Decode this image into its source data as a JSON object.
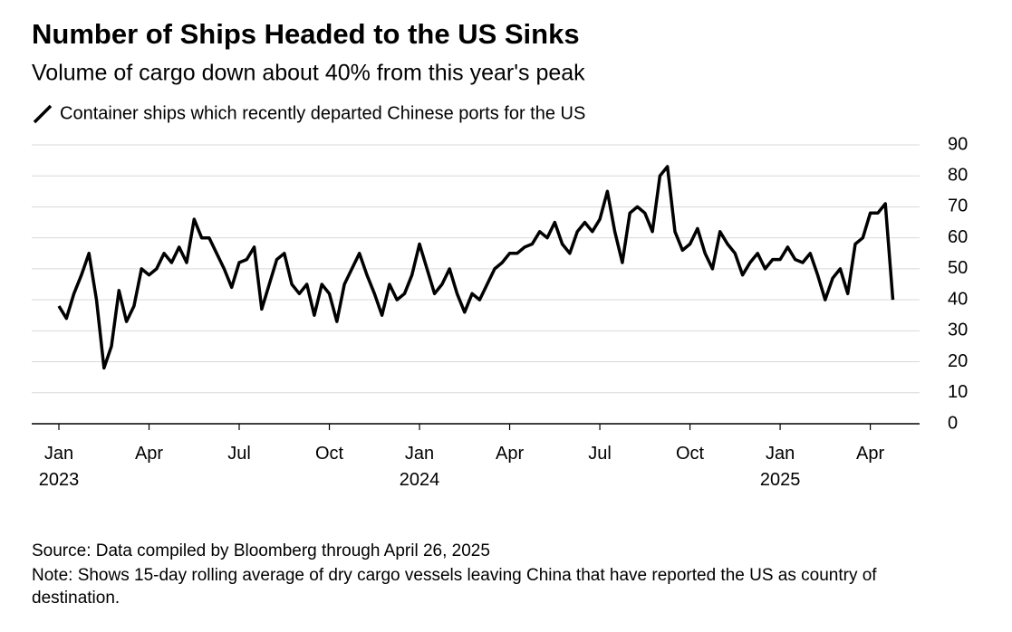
{
  "chart_data": {
    "type": "line",
    "title": "Number of Ships Headed to the US Sinks",
    "subtitle": "Volume of cargo down about 40% from this year's peak",
    "source": "Source: Data compiled by Bloomberg through April 26, 2025",
    "note": "Note: Shows 15-day rolling average of dry cargo vessels leaving China that have reported the US as country of destination.",
    "x": [
      "2023-01",
      "2023-01",
      "2023-01",
      "2023-01",
      "2023-02",
      "2023-02",
      "2023-02",
      "2023-02",
      "2023-03",
      "2023-03",
      "2023-03",
      "2023-03",
      "2023-04",
      "2023-04",
      "2023-04",
      "2023-04",
      "2023-05",
      "2023-05",
      "2023-05",
      "2023-05",
      "2023-06",
      "2023-06",
      "2023-06",
      "2023-06",
      "2023-07",
      "2023-07",
      "2023-07",
      "2023-07",
      "2023-08",
      "2023-08",
      "2023-08",
      "2023-08",
      "2023-09",
      "2023-09",
      "2023-09",
      "2023-09",
      "2023-10",
      "2023-10",
      "2023-10",
      "2023-10",
      "2023-11",
      "2023-11",
      "2023-11",
      "2023-11",
      "2023-12",
      "2023-12",
      "2023-12",
      "2023-12",
      "2024-01",
      "2024-01",
      "2024-01",
      "2024-01",
      "2024-02",
      "2024-02",
      "2024-02",
      "2024-02",
      "2024-03",
      "2024-03",
      "2024-03",
      "2024-03",
      "2024-04",
      "2024-04",
      "2024-04",
      "2024-04",
      "2024-05",
      "2024-05",
      "2024-05",
      "2024-05",
      "2024-06",
      "2024-06",
      "2024-06",
      "2024-06",
      "2024-07",
      "2024-07",
      "2024-07",
      "2024-07",
      "2024-08",
      "2024-08",
      "2024-08",
      "2024-08",
      "2024-09",
      "2024-09",
      "2024-09",
      "2024-09",
      "2024-10",
      "2024-10",
      "2024-10",
      "2024-10",
      "2024-11",
      "2024-11",
      "2024-11",
      "2024-11",
      "2024-12",
      "2024-12",
      "2024-12",
      "2024-12",
      "2025-01",
      "2025-01",
      "2025-01",
      "2025-01",
      "2025-02",
      "2025-02",
      "2025-02",
      "2025-02",
      "2025-03",
      "2025-03",
      "2025-03",
      "2025-03",
      "2025-04",
      "2025-04",
      "2025-04",
      "2025-04"
    ],
    "series": [
      {
        "name": "Container ships which recently departed Chinese ports for the US",
        "color": "#000000",
        "values": [
          38,
          34,
          42,
          48,
          55,
          40,
          18,
          25,
          43,
          33,
          38,
          50,
          48,
          50,
          55,
          52,
          57,
          52,
          66,
          60,
          60,
          55,
          50,
          44,
          52,
          53,
          57,
          37,
          45,
          53,
          55,
          45,
          42,
          45,
          35,
          45,
          42,
          33,
          45,
          50,
          55,
          48,
          42,
          35,
          45,
          40,
          42,
          48,
          58,
          50,
          42,
          45,
          50,
          42,
          36,
          42,
          40,
          45,
          50,
          52,
          55,
          55,
          57,
          58,
          62,
          60,
          65,
          58,
          55,
          62,
          65,
          62,
          66,
          75,
          62,
          52,
          68,
          70,
          68,
          62,
          80,
          83,
          62,
          56,
          58,
          63,
          55,
          50,
          62,
          58,
          55,
          48,
          52,
          55,
          50,
          53,
          53,
          57,
          53,
          52,
          55,
          48,
          40,
          47,
          50,
          42,
          58,
          60,
          68,
          68,
          71,
          40
        ]
      }
    ],
    "xticks": [
      {
        "value": "2023-01",
        "label": "Jan 2023"
      },
      {
        "value": "2023-04",
        "label": "Apr"
      },
      {
        "value": "2023-07",
        "label": "Jul"
      },
      {
        "value": "2023-10",
        "label": "Oct"
      },
      {
        "value": "2024-01",
        "label": "Jan 2024"
      },
      {
        "value": "2024-04",
        "label": "Apr"
      },
      {
        "value": "2024-07",
        "label": "Jul"
      },
      {
        "value": "2024-10",
        "label": "Oct"
      },
      {
        "value": "2025-01",
        "label": "Jan 2025"
      },
      {
        "value": "2025-04",
        "label": "Apr"
      }
    ],
    "ylim": [
      0,
      90
    ],
    "yticks": [
      0,
      10,
      20,
      30,
      40,
      50,
      60,
      70,
      80,
      90
    ],
    "grid": true
  }
}
